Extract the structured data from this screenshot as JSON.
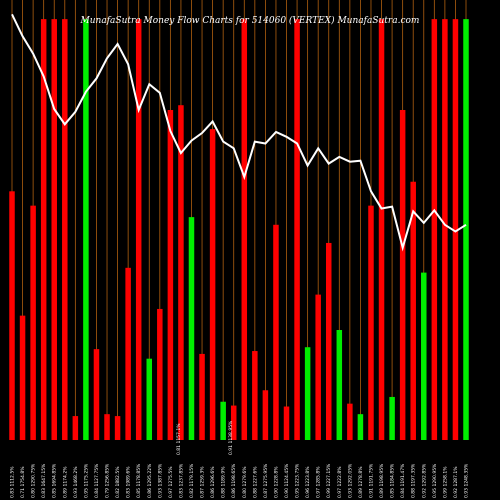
{
  "chart_data": {
    "type": "bar",
    "title": "MunafaSutra Money Flow Charts for 514060 (VERTEX) MunafaSutra.com",
    "xlabel": "",
    "ylabel": "",
    "grid": "vertical",
    "colors": {
      "background": "#000000",
      "up": "#00ee00",
      "down": "#ff0000",
      "line": "#ffffff",
      "gridline": "#b06010"
    },
    "categories": [
      "0.83 1112.5%",
      "0.71 1754.8%",
      "0.80 1290.75%",
      "0.83 1647.15%",
      "0.85 1694.85%",
      "0.89 1174.2%",
      "0.93 1468.2%",
      "0.95 1175.25%",
      "0.84 1127.75%",
      "0.79 1256.85%",
      "0.82 1882.5%",
      "0.83 1989.6%",
      "0.85 1178.85%",
      "0.86 1295.22%",
      "0.93 1387.85%",
      "0.97 1275.5%",
      "0.83 1237.85%",
      "0.82 1179.15%",
      "0.87 1259.3%",
      "0.86 1296.6%",
      "0.88 1189.9%",
      "0.86 1198.65%",
      "0.80 1279.6%",
      "0.88 1227.6%",
      "0.87 1275.95%",
      "0.90 1228.8%",
      "0.90 1124.45%",
      "0.95 1223.75%",
      "0.96 1223.8%",
      "0.97 1285.8%",
      "0.99 1227.15%",
      "0.97 1222.8%",
      "0.93 1292.05%",
      "0.89 1278.8%",
      "0.91 1191.75%",
      "0.89 1198.95%",
      "0.85 1184.85%",
      "0.84 1191.47%",
      "0.88 1197.35%",
      "0.92 1292.85%",
      "0.95 1290.95%",
      "0.99 1258.1%",
      "0.92 1287.1%",
      "0.93 1248.35%"
    ],
    "values": [
      260,
      130,
      245,
      440,
      440,
      440,
      25,
      440,
      95,
      27,
      25,
      180,
      440,
      85,
      137,
      345,
      350,
      233,
      90,
      325,
      40,
      36,
      440,
      93,
      52,
      225,
      35,
      440,
      97,
      152,
      206,
      115,
      38,
      27,
      245,
      440,
      45,
      345,
      270,
      175,
      440,
      440,
      440,
      440
    ],
    "direction": [
      "down",
      "down",
      "down",
      "down",
      "down",
      "down",
      "down",
      "up",
      "down",
      "down",
      "down",
      "down",
      "down",
      "up",
      "down",
      "down",
      "down",
      "up",
      "down",
      "down",
      "up",
      "down",
      "down",
      "down",
      "down",
      "down",
      "down",
      "down",
      "up",
      "down",
      "down",
      "up",
      "down",
      "up",
      "down",
      "down",
      "up",
      "down",
      "down",
      "up",
      "down",
      "down",
      "down",
      "up"
    ],
    "line_values": [
      445,
      422,
      404,
      380,
      346,
      330,
      343,
      364,
      378,
      399,
      414,
      393,
      345,
      372,
      363,
      323,
      300,
      313,
      321,
      333,
      312,
      305,
      275,
      312,
      310,
      322,
      317,
      310,
      287,
      305,
      289,
      296,
      291,
      292,
      260,
      242,
      244,
      201,
      239,
      227,
      240,
      225,
      218,
      225
    ],
    "ylim": [
      0,
      460
    ],
    "annotations": [
      "0.81 1157.1%",
      "0.91 1138.95%"
    ]
  }
}
